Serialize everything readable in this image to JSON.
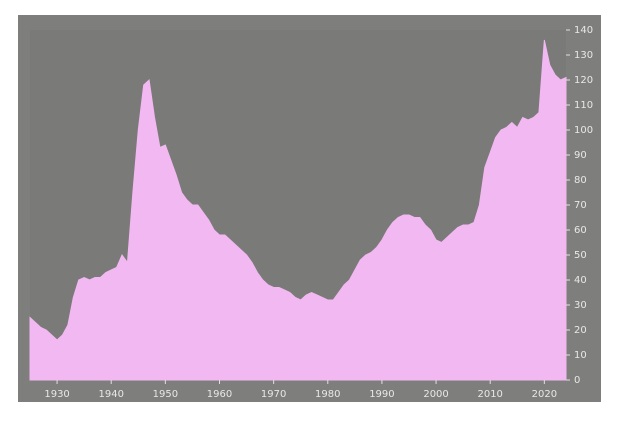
{
  "chart_data": {
    "type": "area",
    "color": "#f2b8f2",
    "background": "#7a7a78",
    "x": [
      1925,
      1926,
      1927,
      1928,
      1929,
      1930,
      1931,
      1932,
      1933,
      1934,
      1935,
      1936,
      1937,
      1938,
      1939,
      1940,
      1941,
      1942,
      1943,
      1944,
      1945,
      1946,
      1947,
      1948,
      1949,
      1950,
      1951,
      1952,
      1953,
      1954,
      1955,
      1956,
      1957,
      1958,
      1959,
      1960,
      1961,
      1962,
      1963,
      1964,
      1965,
      1966,
      1967,
      1968,
      1969,
      1970,
      1971,
      1972,
      1973,
      1974,
      1975,
      1976,
      1977,
      1978,
      1979,
      1980,
      1981,
      1982,
      1983,
      1984,
      1985,
      1986,
      1987,
      1988,
      1989,
      1990,
      1991,
      1992,
      1993,
      1994,
      1995,
      1996,
      1997,
      1998,
      1999,
      2000,
      2001,
      2002,
      2003,
      2004,
      2005,
      2006,
      2007,
      2008,
      2009,
      2010,
      2011,
      2012,
      2013,
      2014,
      2015,
      2016,
      2017,
      2018,
      2019,
      2020,
      2021,
      2022,
      2023,
      2024
    ],
    "values": [
      25,
      23,
      21,
      20,
      18,
      16,
      18,
      22,
      33,
      40,
      41,
      40,
      41,
      41,
      43,
      44,
      45,
      50,
      47,
      75,
      100,
      118,
      120,
      105,
      93,
      94,
      88,
      82,
      75,
      72,
      70,
      70,
      67,
      64,
      60,
      58,
      58,
      56,
      54,
      52,
      50,
      47,
      43,
      40,
      38,
      37,
      37,
      36,
      35,
      33,
      32,
      34,
      35,
      34,
      33,
      32,
      32,
      35,
      38,
      40,
      44,
      48,
      50,
      51,
      53,
      56,
      60,
      63,
      65,
      66,
      66,
      65,
      65,
      62,
      60,
      56,
      55,
      57,
      59,
      61,
      62,
      62,
      63,
      70,
      85,
      91,
      97,
      100,
      101,
      103,
      101,
      105,
      104,
      105,
      107,
      136,
      126,
      122,
      120,
      121
    ],
    "xlim": [
      1925,
      2024
    ],
    "xticks": [
      1930,
      1940,
      1950,
      1960,
      1970,
      1980,
      1990,
      2000,
      2010,
      2020
    ],
    "ylim": [
      0,
      140
    ],
    "yticks": [
      0,
      10,
      20,
      30,
      40,
      50,
      60,
      70,
      80,
      90,
      100,
      110,
      120,
      130,
      140
    ]
  }
}
